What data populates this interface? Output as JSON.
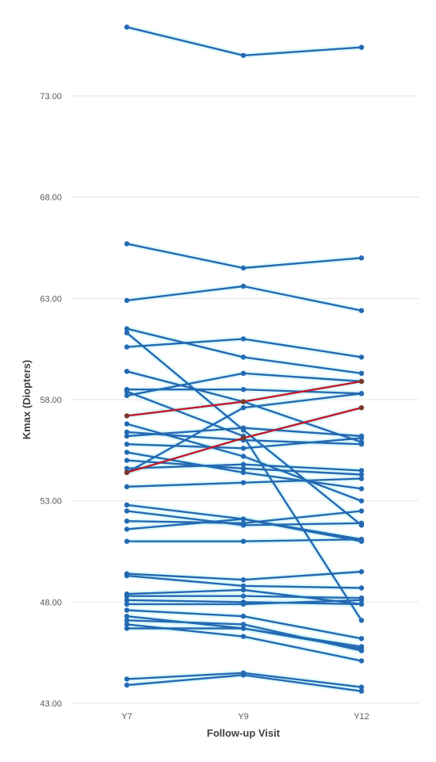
{
  "chart_data": {
    "type": "line",
    "title": "",
    "xlabel": "Follow-up Visit",
    "ylabel": "Kmax (Diopters)",
    "categories": [
      "Y7",
      "Y9",
      "Y12"
    ],
    "ylim": [
      43,
      77
    ],
    "y_ticks": [
      "43.00",
      "48.00",
      "53.00",
      "58.00",
      "63.00",
      "68.00",
      "73.00"
    ],
    "grid": true,
    "legend": "none",
    "colors": {
      "default": "#2569b3",
      "highlight": "#c0182a",
      "glow": "#c8f5f8"
    },
    "series": [
      {
        "values": [
          76.4,
          75.0,
          75.4
        ]
      },
      {
        "values": [
          65.7,
          64.5,
          65.0
        ]
      },
      {
        "values": [
          62.9,
          63.6,
          62.4
        ]
      },
      {
        "values": [
          61.5,
          60.1,
          59.3
        ]
      },
      {
        "values": [
          61.3,
          56.5,
          51.8
        ]
      },
      {
        "values": [
          60.6,
          61.0,
          60.1
        ]
      },
      {
        "values": [
          59.4,
          57.9,
          55.9
        ]
      },
      {
        "values": [
          58.5,
          58.5,
          58.3
        ]
      },
      {
        "values": [
          58.4,
          56.2,
          47.1
        ]
      },
      {
        "values": [
          58.2,
          59.3,
          58.9
        ]
      },
      {
        "values": [
          56.8,
          55.2,
          53.0
        ]
      },
      {
        "values": [
          56.4,
          56.0,
          55.8
        ]
      },
      {
        "values": [
          56.2,
          56.6,
          56.2
        ]
      },
      {
        "values": [
          55.8,
          55.6,
          56.1
        ]
      },
      {
        "values": [
          55.4,
          54.4,
          53.6
        ]
      },
      {
        "values": [
          55.0,
          54.6,
          54.3
        ]
      },
      {
        "values": [
          54.6,
          54.8,
          54.5
        ]
      },
      {
        "values": [
          54.4,
          57.6,
          58.3
        ]
      },
      {
        "values": [
          53.7,
          53.9,
          54.1
        ]
      },
      {
        "values": [
          52.8,
          52.1,
          51.1
        ]
      },
      {
        "values": [
          52.5,
          51.8,
          51.9
        ]
      },
      {
        "values": [
          52.0,
          51.9,
          52.5
        ]
      },
      {
        "values": [
          51.6,
          52.1,
          51.0
        ]
      },
      {
        "values": [
          51.0,
          51.0,
          51.1
        ]
      },
      {
        "values": [
          49.4,
          49.1,
          49.5
        ]
      },
      {
        "values": [
          49.3,
          48.8,
          48.7
        ]
      },
      {
        "values": [
          48.4,
          48.6,
          47.9
        ]
      },
      {
        "values": [
          48.3,
          48.3,
          48.2
        ]
      },
      {
        "values": [
          48.1,
          48.0,
          47.9
        ]
      },
      {
        "values": [
          47.9,
          47.9,
          48.1
        ]
      },
      {
        "values": [
          47.6,
          47.3,
          46.2
        ]
      },
      {
        "values": [
          47.3,
          46.7,
          45.8
        ]
      },
      {
        "values": [
          47.1,
          46.9,
          45.6
        ]
      },
      {
        "values": [
          46.9,
          46.3,
          45.1
        ]
      },
      {
        "values": [
          46.7,
          46.7,
          45.7
        ]
      },
      {
        "values": [
          44.2,
          44.5,
          43.8
        ]
      },
      {
        "values": [
          43.9,
          44.4,
          43.6
        ]
      },
      {
        "values": [
          57.2,
          57.9,
          58.9
        ],
        "highlight": true
      },
      {
        "values": [
          54.4,
          56.1,
          57.6
        ],
        "highlight": true
      }
    ]
  }
}
